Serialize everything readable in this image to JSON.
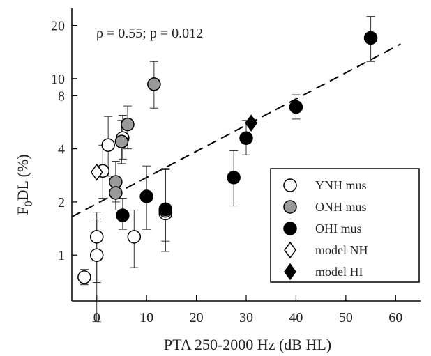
{
  "chart_data": {
    "type": "scatter",
    "xlabel": "PTA 250-2000 Hz (dB HL)",
    "ylabel": {
      "base": "F",
      "sub": "0",
      "rest": "DL (%)"
    },
    "annotation": "ρ = 0.55; p = 0.012",
    "xlim": [
      -5,
      65
    ],
    "ylim": [
      0.55,
      25
    ],
    "yscale": "log",
    "x_ticks": [
      0,
      10,
      20,
      30,
      40,
      50,
      60
    ],
    "y_ticks": [
      1,
      2,
      4,
      8,
      10,
      20
    ],
    "legend_position": "bottom-right",
    "fit_line": {
      "style": "dashed",
      "x": [
        -5,
        61
      ],
      "y": [
        1.65,
        15.7
      ]
    },
    "series": [
      {
        "name": "YNH mus",
        "marker": "circle",
        "fill": "#ffffff",
        "points": [
          {
            "x": -2.5,
            "y": 0.75,
            "lo": 0.68,
            "hi": 0.83
          },
          {
            "x": 0,
            "y": 1.0,
            "lo": 0.7,
            "hi": 1.6
          },
          {
            "x": 0,
            "y": 1.27,
            "lo": 0.42,
            "hi": 1.75
          },
          {
            "x": 1.2,
            "y": 3.0,
            "lo": 2.1,
            "hi": 4.2
          },
          {
            "x": 2.3,
            "y": 4.2,
            "lo": 2.8,
            "hi": 6.1
          },
          {
            "x": 5.2,
            "y": 4.6,
            "lo": 3.5,
            "hi": 6.2
          },
          {
            "x": 7.5,
            "y": 1.27,
            "lo": 0.85,
            "hi": 1.8
          },
          {
            "x": 13.8,
            "y": 1.72,
            "lo": 1.05,
            "hi": 3.1
          }
        ]
      },
      {
        "name": "ONH mus",
        "marker": "circle",
        "fill": "#999999",
        "points": [
          {
            "x": 3.8,
            "y": 2.6,
            "lo": 2.0,
            "hi": 3.4
          },
          {
            "x": 3.8,
            "y": 2.25,
            "lo": 1.8,
            "hi": 2.8
          },
          {
            "x": 5.0,
            "y": 4.4,
            "lo": 3.3,
            "hi": 5.8
          },
          {
            "x": 6.2,
            "y": 5.5,
            "lo": 4.0,
            "hi": 7.0
          },
          {
            "x": 11.5,
            "y": 9.3,
            "lo": 6.8,
            "hi": 12.5
          },
          {
            "x": 13.8,
            "y": 1.78,
            "lo": 1.05,
            "hi": 3.05
          }
        ]
      },
      {
        "name": "OHI mus",
        "marker": "circle",
        "fill": "#000000",
        "points": [
          {
            "x": 5.2,
            "y": 1.68,
            "lo": 1.4,
            "hi": 2.1
          },
          {
            "x": 10.0,
            "y": 2.15,
            "lo": 1.4,
            "hi": 3.2
          },
          {
            "x": 13.8,
            "y": 1.82,
            "lo": 1.2,
            "hi": 3.05
          },
          {
            "x": 27.5,
            "y": 2.75,
            "lo": 1.9,
            "hi": 3.9
          },
          {
            "x": 30.0,
            "y": 4.6,
            "lo": 3.7,
            "hi": 5.8
          },
          {
            "x": 40.0,
            "y": 6.9,
            "lo": 5.9,
            "hi": 8.1
          },
          {
            "x": 55.0,
            "y": 17.0,
            "lo": 12.5,
            "hi": 22.5
          }
        ]
      },
      {
        "name": "model NH",
        "marker": "diamond",
        "fill": "#ffffff",
        "points": [
          {
            "x": 0,
            "y": 2.95
          }
        ]
      },
      {
        "name": "model HI",
        "marker": "diamond",
        "fill": "#000000",
        "points": [
          {
            "x": 31,
            "y": 5.6
          }
        ]
      }
    ]
  }
}
